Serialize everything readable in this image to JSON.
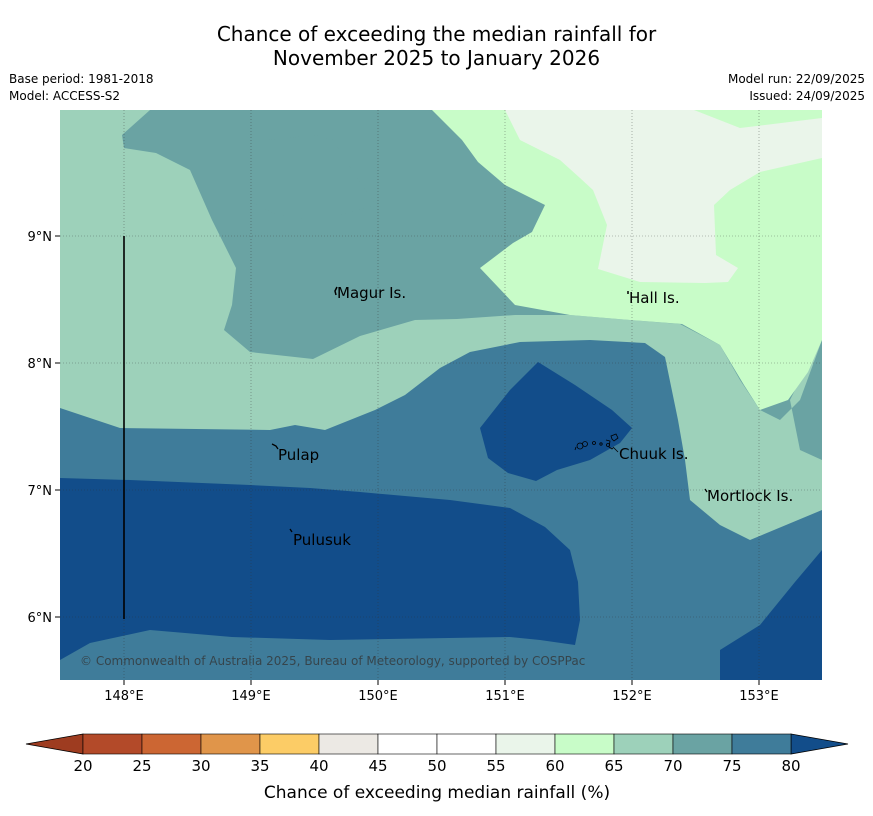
{
  "title_line1": "Chance of exceeding the median rainfall for",
  "title_line2": "November 2025 to January 2026",
  "meta_left": [
    "Base period: 1981-2018",
    "Model: ACCESS-S2"
  ],
  "meta_right": [
    "Model run: 22/09/2025",
    "Issued: 24/09/2025"
  ],
  "places": {
    "magur": "Magur Is.",
    "hall": "Hall Is.",
    "pulap": "Pulap",
    "chuuk": "Chuuk Is.",
    "mortlock": "Mortlock Is.",
    "pulusuk": "Pulusuk"
  },
  "lat_ticks": [
    "9°N",
    "8°N",
    "7°N",
    "6°N"
  ],
  "lon_ticks": [
    "148°E",
    "149°E",
    "150°E",
    "151°E",
    "152°E",
    "153°E"
  ],
  "copyright": "© Commonwealth of Australia 2025, Bureau of Meteorology, supported by COSPPac",
  "colorbar": {
    "ticks": [
      "20",
      "25",
      "30",
      "35",
      "40",
      "45",
      "50",
      "55",
      "60",
      "65",
      "70",
      "75",
      "80"
    ],
    "label": "Chance of exceeding median rainfall (%)",
    "colors": [
      "#b34a29",
      "#cc6633",
      "#e0954a",
      "#fccc66",
      "#ece9e4",
      "#ffffff",
      "#ffffff",
      "#eaf5ea",
      "#c8fcc8",
      "#9dd1ba",
      "#6aa3a3",
      "#3f7c9a"
    ],
    "under_color": "#9e3c20",
    "over_color": "#124d8a"
  },
  "map_colors": {
    "c70_75": "#6aa3a3",
    "c65_70": "#9dd1ba",
    "c60_65": "#c8fcc8",
    "c55_60": "#eaf5ea",
    "c75_80": "#3f7c9a",
    "c80": "#124d8a"
  }
}
